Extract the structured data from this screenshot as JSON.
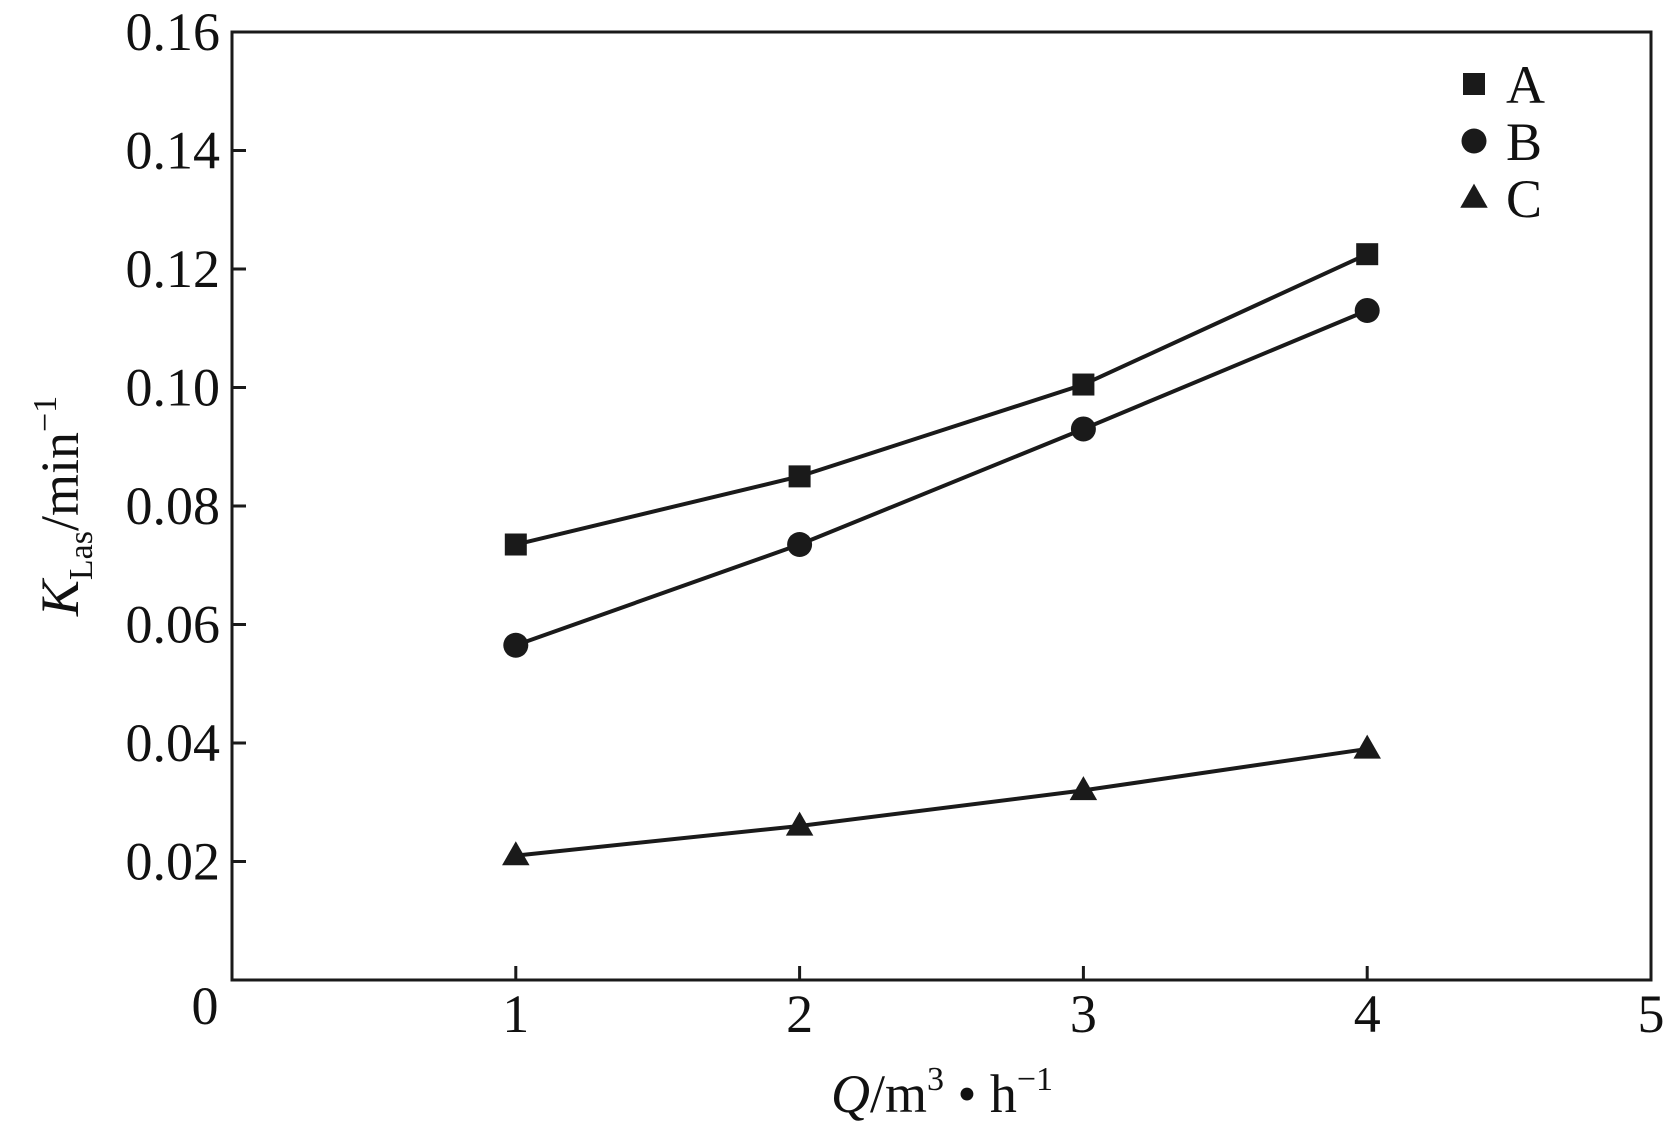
{
  "chart_data": {
    "type": "line",
    "x": [
      1,
      2,
      3,
      4
    ],
    "xlim": [
      0,
      5
    ],
    "ylim": [
      0,
      0.16
    ],
    "x_ticks": [
      "1",
      "2",
      "3",
      "4",
      "5"
    ],
    "y_ticks": [
      "0.02",
      "0.04",
      "0.06",
      "0.08",
      "0.10",
      "0.12",
      "0.14",
      "0.16"
    ],
    "origin_label": "0",
    "xlabel": {
      "var": "Q",
      "unit_prefix": "/m",
      "sup1": "3",
      "mid": " • h",
      "sup2": "−1"
    },
    "ylabel": {
      "var": "K",
      "sub": "Las",
      "unit_prefix": "/min",
      "sup": "−1"
    },
    "legend_position": "top-right",
    "grid": false,
    "series": [
      {
        "name": "A",
        "marker": "square",
        "values": [
          0.0735,
          0.085,
          0.1005,
          0.1225
        ]
      },
      {
        "name": "B",
        "marker": "circle",
        "values": [
          0.0565,
          0.0735,
          0.093,
          0.113
        ]
      },
      {
        "name": "C",
        "marker": "triangle",
        "values": [
          0.021,
          0.026,
          0.032,
          0.039
        ]
      }
    ],
    "colors": {
      "line": "#1a1a1a",
      "marker": "#1a1a1a",
      "axis": "#1a1a1a",
      "background": "#ffffff"
    }
  }
}
